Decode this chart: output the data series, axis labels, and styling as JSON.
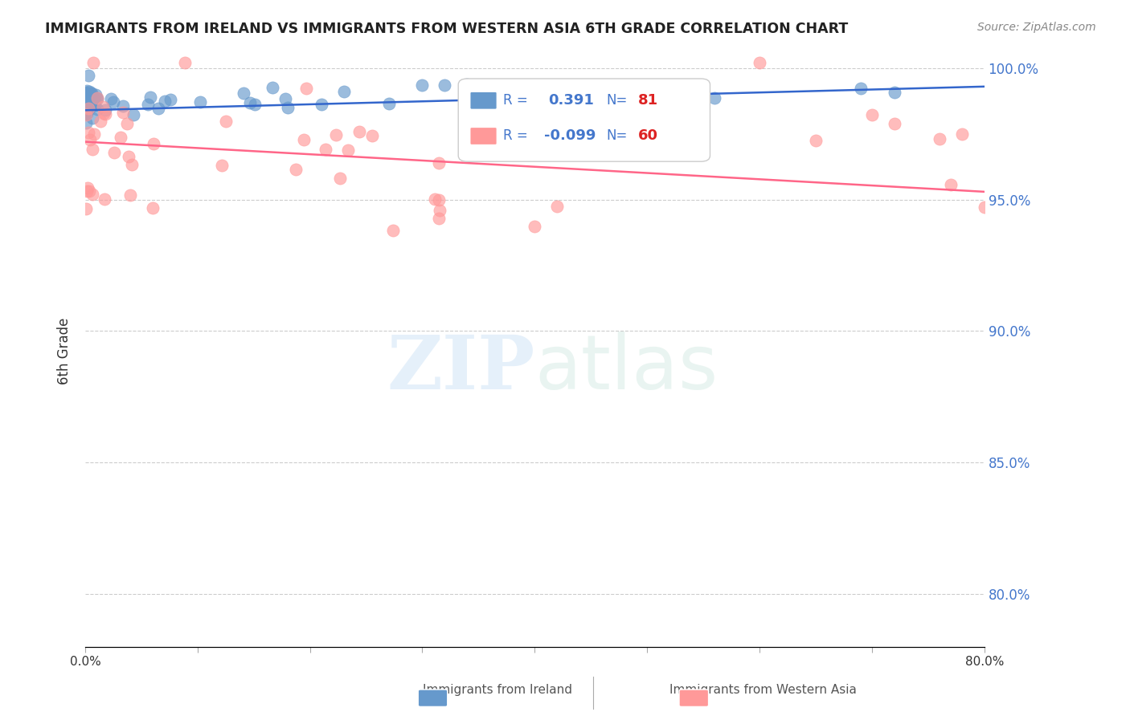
{
  "title": "IMMIGRANTS FROM IRELAND VS IMMIGRANTS FROM WESTERN ASIA 6TH GRADE CORRELATION CHART",
  "source": "Source: ZipAtlas.com",
  "ylabel": "6th Grade",
  "xlim": [
    0.0,
    0.8
  ],
  "ylim": [
    0.78,
    1.005
  ],
  "xticks": [
    0.0,
    0.1,
    0.2,
    0.3,
    0.4,
    0.5,
    0.6,
    0.7,
    0.8
  ],
  "xtick_labels": [
    "0.0%",
    "",
    "",
    "",
    "",
    "",
    "",
    "",
    "80.0%"
  ],
  "yticks": [
    0.8,
    0.85,
    0.9,
    0.95,
    1.0
  ],
  "ytick_labels": [
    "80.0%",
    "85.0%",
    "90.0%",
    "95.0%",
    "100.0%"
  ],
  "blue_color": "#6699cc",
  "pink_color": "#ff9999",
  "blue_line_color": "#3366cc",
  "pink_line_color": "#ff6688",
  "R_blue": 0.391,
  "N_blue": 81,
  "R_pink": -0.099,
  "N_pink": 60,
  "blue_trend_x": [
    0.0,
    0.8
  ],
  "blue_trend_y": [
    0.984,
    0.993
  ],
  "pink_trend_x": [
    0.0,
    0.8
  ],
  "pink_trend_y": [
    0.972,
    0.953
  ]
}
